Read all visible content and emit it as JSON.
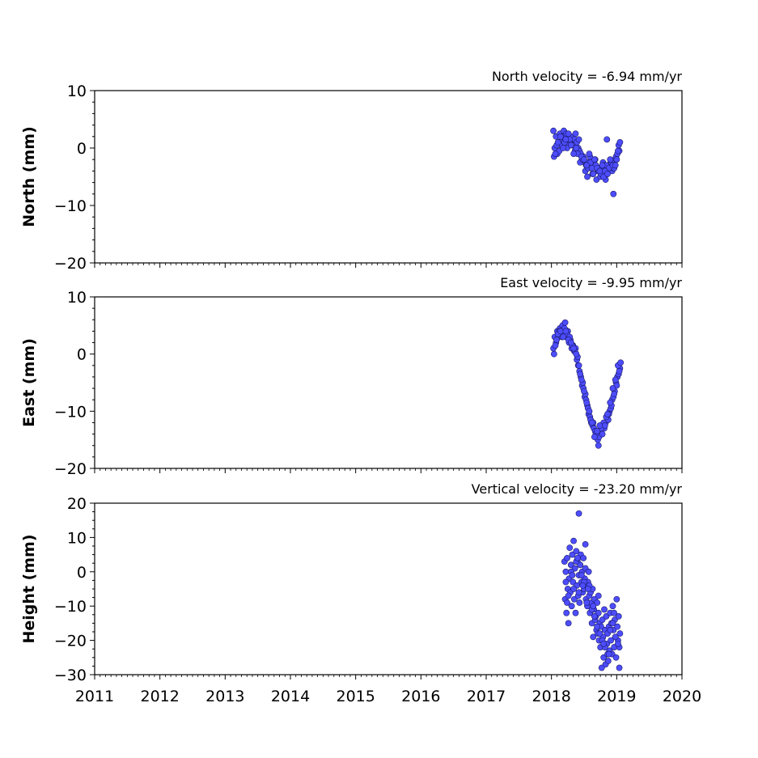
{
  "chart_data": [
    {
      "type": "scatter",
      "velocity_label": "North velocity = -6.94 mm/yr",
      "ylabel": "North (mm)",
      "ylim": [
        -20,
        10
      ],
      "yticks": [
        10,
        0,
        -10,
        -20
      ],
      "ytick_labels": [
        "10",
        "0",
        "−10",
        "−20"
      ],
      "xlim": [
        2011,
        2020
      ],
      "marker_color": "#4d4dff",
      "marker_edge_color": "#1a1a66",
      "series": [
        {
          "x": [
            2018.03,
            2018.05,
            2018.07,
            2018.09,
            2018.11,
            2018.13,
            2018.15,
            2018.17,
            2018.19,
            2018.21,
            2018.23,
            2018.25,
            2018.27,
            2018.29,
            2018.31,
            2018.33,
            2018.35,
            2018.37,
            2018.39,
            2018.41,
            2018.43,
            2018.45,
            2018.47,
            2018.49,
            2018.51,
            2018.53,
            2018.55,
            2018.57,
            2018.59,
            2018.61,
            2018.63,
            2018.65,
            2018.67,
            2018.69,
            2018.71,
            2018.73,
            2018.75,
            2018.77,
            2018.79,
            2018.81,
            2018.83,
            2018.85,
            2018.87,
            2018.89,
            2018.91,
            2018.93,
            2018.95,
            2018.97,
            2018.99,
            2019.01,
            2019.03,
            2019.05,
            2018.04,
            2018.08,
            2018.12,
            2018.16,
            2018.2,
            2018.24,
            2018.28,
            2018.32,
            2018.36,
            2018.4,
            2018.44,
            2018.48,
            2018.52,
            2018.56,
            2018.6,
            2018.64,
            2018.68,
            2018.72,
            2018.76,
            2018.8,
            2018.84,
            2018.88,
            2018.92,
            2018.96,
            2019.0,
            2019.04,
            2018.06,
            2018.1,
            2018.14,
            2018.18,
            2018.22,
            2018.26,
            2018.3,
            2018.34,
            2018.38,
            2018.42,
            2018.46,
            2018.5,
            2018.54,
            2018.58,
            2018.62,
            2018.66,
            2018.7,
            2018.74,
            2018.78,
            2018.82,
            2018.86,
            2018.9,
            2018.94,
            2018.98,
            2019.02,
            2018.85,
            2018.95
          ],
          "y": [
            3.0,
            0.0,
            2.0,
            -1.0,
            1.0,
            2.5,
            0.5,
            1.5,
            3.0,
            2.0,
            2.5,
            1.0,
            0.5,
            2.0,
            1.0,
            0.5,
            1.5,
            2.5,
            1.0,
            0.0,
            -0.5,
            -1.0,
            -2.0,
            -1.5,
            -2.5,
            -3.0,
            -5.0,
            -2.5,
            -1.5,
            -3.5,
            -4.5,
            -3.0,
            -2.0,
            -5.5,
            -4.0,
            -3.5,
            -5.0,
            -4.0,
            -2.5,
            -3.0,
            -5.5,
            -4.5,
            -3.5,
            -3.0,
            -2.5,
            -4.0,
            -3.5,
            -2.0,
            -1.5,
            -1.0,
            0.5,
            1.0,
            -1.5,
            0.5,
            -0.5,
            2.0,
            1.0,
            0.0,
            1.5,
            0.5,
            -0.5,
            -1.0,
            -2.5,
            -2.0,
            -4.0,
            -3.5,
            -2.5,
            -4.5,
            -3.0,
            -4.0,
            -4.5,
            -5.0,
            -3.0,
            -3.5,
            -2.5,
            -3.5,
            -2.0,
            -0.5,
            -1.0,
            1.0,
            2.0,
            0.0,
            1.5,
            2.5,
            0.5,
            -1.0,
            0.0,
            1.5,
            -1.5,
            -2.0,
            -3.0,
            -1.0,
            -3.5,
            -2.0,
            -3.5,
            -4.0,
            -3.0,
            -4.0,
            -4.5,
            -2.0,
            -3.0,
            -3.0,
            -0.5,
            1.5,
            -8.0
          ]
        }
      ]
    },
    {
      "type": "scatter",
      "velocity_label": "East velocity = -9.95 mm/yr",
      "ylabel": "East (mm)",
      "ylim": [
        -20,
        10
      ],
      "yticks": [
        10,
        0,
        -10,
        -20
      ],
      "ytick_labels": [
        "10",
        "0",
        "−10",
        "−20"
      ],
      "xlim": [
        2011,
        2020
      ],
      "marker_color": "#4d4dff",
      "marker_edge_color": "#1a1a66",
      "series": [
        {
          "x": [
            2018.03,
            2018.05,
            2018.07,
            2018.09,
            2018.11,
            2018.13,
            2018.15,
            2018.17,
            2018.19,
            2018.21,
            2018.23,
            2018.25,
            2018.27,
            2018.29,
            2018.31,
            2018.33,
            2018.35,
            2018.37,
            2018.39,
            2018.41,
            2018.43,
            2018.45,
            2018.47,
            2018.49,
            2018.51,
            2018.53,
            2018.55,
            2018.57,
            2018.59,
            2018.61,
            2018.63,
            2018.65,
            2018.67,
            2018.69,
            2018.71,
            2018.73,
            2018.75,
            2018.77,
            2018.79,
            2018.81,
            2018.83,
            2018.85,
            2018.87,
            2018.89,
            2018.91,
            2018.93,
            2018.95,
            2018.97,
            2018.99,
            2019.01,
            2019.03,
            2019.05,
            2018.04,
            2018.08,
            2018.12,
            2018.16,
            2018.2,
            2018.24,
            2018.28,
            2018.32,
            2018.36,
            2018.4,
            2018.44,
            2018.48,
            2018.52,
            2018.56,
            2018.6,
            2018.64,
            2018.68,
            2018.72,
            2018.76,
            2018.8,
            2018.84,
            2018.88,
            2018.92,
            2018.96,
            2019.0,
            2019.04,
            2018.06,
            2018.1,
            2018.14,
            2018.18,
            2018.22,
            2018.26,
            2018.3,
            2018.34,
            2018.38,
            2018.42,
            2018.46,
            2018.5,
            2018.54,
            2018.58,
            2018.62,
            2018.66,
            2018.7,
            2018.74,
            2018.78,
            2018.82,
            2018.86,
            2018.9,
            2018.94,
            2018.98,
            2019.02,
            2019.06
          ],
          "y": [
            1.0,
            3.0,
            2.0,
            4.0,
            3.0,
            4.5,
            3.5,
            5.0,
            4.0,
            5.5,
            3.0,
            4.0,
            2.0,
            2.5,
            1.0,
            1.5,
            0.5,
            1.0,
            -1.0,
            -2.0,
            -3.0,
            -4.0,
            -5.5,
            -6.0,
            -7.5,
            -8.0,
            -9.0,
            -10.5,
            -11.0,
            -12.0,
            -12.5,
            -13.0,
            -13.5,
            -14.0,
            -15.0,
            -14.5,
            -13.5,
            -13.0,
            -12.5,
            -13.0,
            -12.0,
            -11.0,
            -11.5,
            -10.0,
            -9.5,
            -8.0,
            -7.5,
            -6.5,
            -5.0,
            -4.0,
            -3.5,
            -2.5,
            0.0,
            2.5,
            4.0,
            3.0,
            4.5,
            3.5,
            3.0,
            1.5,
            0.5,
            -0.5,
            -3.5,
            -5.0,
            -7.0,
            -9.5,
            -11.5,
            -12.0,
            -14.0,
            -16.0,
            -13.0,
            -12.0,
            -11.0,
            -10.5,
            -9.0,
            -7.0,
            -5.5,
            -3.0,
            1.5,
            3.5,
            4.0,
            3.0,
            4.0,
            2.5,
            2.0,
            1.0,
            0.0,
            -2.0,
            -4.5,
            -6.5,
            -8.5,
            -10.0,
            -12.0,
            -14.5,
            -13.5,
            -12.5,
            -14.0,
            -12.5,
            -10.5,
            -8.5,
            -6.0,
            -4.5,
            -2.0,
            -1.5
          ]
        }
      ]
    },
    {
      "type": "scatter",
      "velocity_label": "Vertical velocity = -23.20 mm/yr",
      "ylabel": "Height (mm)",
      "ylim": [
        -30,
        20
      ],
      "yticks": [
        20,
        10,
        0,
        -10,
        -20,
        -30
      ],
      "ytick_labels": [
        "20",
        "10",
        "0",
        "−10",
        "−20",
        "−30"
      ],
      "xlim": [
        2011,
        2020
      ],
      "xticks": [
        2011,
        2012,
        2013,
        2014,
        2015,
        2016,
        2017,
        2018,
        2019,
        2020
      ],
      "xtick_labels": [
        "2011",
        "2012",
        "2013",
        "2014",
        "2015",
        "2016",
        "2017",
        "2018",
        "2019",
        "2020"
      ],
      "marker_color": "#4d4dff",
      "marker_edge_color": "#1a1a66",
      "series": [
        {
          "x": [
            2018.2,
            2018.21,
            2018.22,
            2018.23,
            2018.24,
            2018.25,
            2018.26,
            2018.27,
            2018.28,
            2018.29,
            2018.3,
            2018.31,
            2018.32,
            2018.33,
            2018.34,
            2018.35,
            2018.36,
            2018.37,
            2018.38,
            2018.39,
            2018.4,
            2018.41,
            2018.42,
            2018.43,
            2018.44,
            2018.45,
            2018.46,
            2018.47,
            2018.48,
            2018.49,
            2018.5,
            2018.51,
            2018.52,
            2018.53,
            2018.54,
            2018.55,
            2018.56,
            2018.57,
            2018.58,
            2018.59,
            2018.6,
            2018.61,
            2018.62,
            2018.63,
            2018.64,
            2018.65,
            2018.66,
            2018.67,
            2018.68,
            2018.69,
            2018.7,
            2018.71,
            2018.72,
            2018.73,
            2018.74,
            2018.75,
            2018.76,
            2018.77,
            2018.78,
            2018.79,
            2018.8,
            2018.81,
            2018.82,
            2018.83,
            2018.84,
            2018.85,
            2018.86,
            2018.87,
            2018.88,
            2018.89,
            2018.9,
            2018.91,
            2018.92,
            2018.93,
            2018.94,
            2018.95,
            2018.96,
            2018.97,
            2018.98,
            2018.99,
            2019.0,
            2019.01,
            2019.02,
            2019.03,
            2019.04,
            2019.05,
            2018.22,
            2018.26,
            2018.3,
            2018.34,
            2018.38,
            2018.42,
            2018.46,
            2018.5,
            2018.54,
            2018.58,
            2018.62,
            2018.66,
            2018.7,
            2018.74,
            2018.78,
            2018.82,
            2018.86,
            2018.9,
            2018.94,
            2018.98,
            2019.02,
            2018.24,
            2018.32,
            2018.4,
            2018.48,
            2018.56,
            2018.64,
            2018.72,
            2018.8,
            2018.88,
            2018.96,
            2019.04,
            2018.42,
            2018.52
          ],
          "y": [
            3.0,
            -8.0,
            0.0,
            -12.0,
            4.0,
            -5.0,
            -15.0,
            -2.0,
            7.0,
            -6.0,
            2.0,
            -10.0,
            5.0,
            -3.0,
            9.0,
            -8.0,
            1.0,
            -12.0,
            6.0,
            -4.0,
            3.0,
            -7.0,
            -1.0,
            -9.0,
            2.0,
            5.0,
            -3.0,
            0.0,
            -6.0,
            4.0,
            -5.0,
            -2.0,
            1.0,
            -8.0,
            -4.0,
            -10.0,
            -3.0,
            0.0,
            -7.0,
            -12.0,
            -6.0,
            -9.0,
            -15.0,
            -5.0,
            -19.0,
            -11.0,
            -8.0,
            -14.0,
            -13.0,
            -17.0,
            -9.0,
            -18.0,
            -12.0,
            -20.0,
            -15.0,
            -22.0,
            -16.0,
            -28.0,
            -14.0,
            -19.0,
            -25.0,
            -11.0,
            -17.0,
            -27.0,
            -13.0,
            -21.0,
            -18.0,
            -26.0,
            -16.0,
            -23.0,
            -12.0,
            -20.0,
            -15.0,
            -24.0,
            -10.0,
            -17.0,
            -22.0,
            -14.0,
            -19.0,
            -25.0,
            -8.0,
            -16.0,
            -20.0,
            -13.0,
            -22.0,
            -18.0,
            -3.0,
            -7.0,
            0.0,
            -5.0,
            3.0,
            -6.0,
            -1.0,
            -3.0,
            -9.0,
            -4.0,
            -11.0,
            -13.0,
            -16.0,
            -18.0,
            -20.0,
            -22.0,
            -24.0,
            -17.0,
            -15.0,
            -19.0,
            -21.0,
            -9.0,
            -1.0,
            4.0,
            -4.0,
            -5.0,
            -10.0,
            -7.0,
            -21.0,
            -24.0,
            -12.0,
            -28.0,
            17.0,
            8.0
          ]
        }
      ]
    }
  ]
}
